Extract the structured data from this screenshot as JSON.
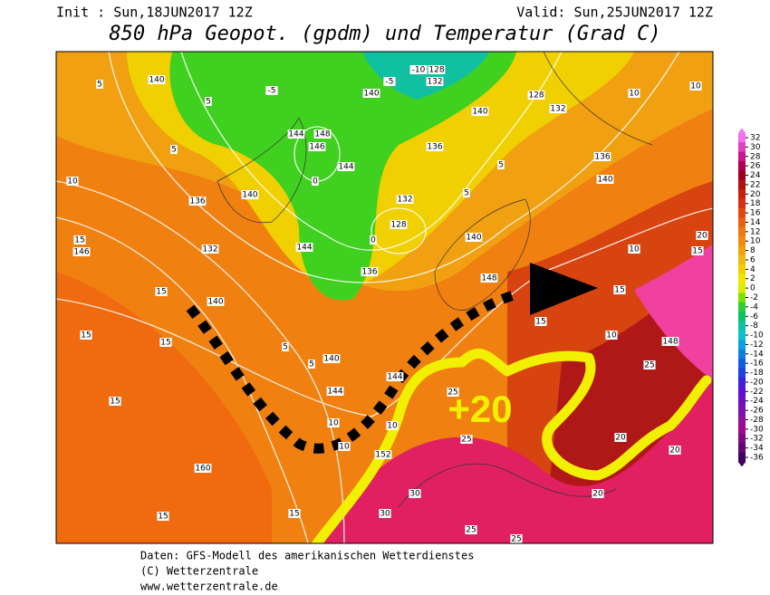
{
  "header": {
    "init": "Init : Sun,18JUN2017 12Z",
    "valid": "Valid: Sun,25JUN2017 12Z",
    "title": "850 hPa Geopot. (gpdm) und Temperatur (Grad C)"
  },
  "annotation": "+20",
  "map": {
    "labels": [
      "140",
      "5",
      "-5",
      "144",
      "148",
      "146",
      "144",
      "140",
      "140",
      "136",
      "132",
      "128",
      "136",
      "140",
      "148",
      "144",
      "140",
      "136",
      "132",
      "146",
      "140",
      "140",
      "144",
      "144",
      "152",
      "160",
      "10",
      "15",
      "15",
      "15",
      "15",
      "15",
      "15",
      "15",
      "10",
      "10",
      "10",
      "10",
      "10",
      "15",
      "15",
      "15",
      "20",
      "25",
      "25",
      "25",
      "30",
      "30",
      "25",
      "25",
      "20",
      "20",
      "20",
      "148",
      "136",
      "140",
      "132",
      "128",
      "-10",
      "128",
      "132",
      "-5",
      "5",
      "5",
      "10",
      "10",
      "5",
      "5",
      "0",
      "0",
      "5",
      "5"
    ]
  },
  "colorbar": {
    "ticks": [
      32,
      30,
      28,
      26,
      24,
      22,
      20,
      18,
      16,
      14,
      12,
      10,
      8,
      6,
      4,
      2,
      0,
      -2,
      -4,
      -6,
      -8,
      -10,
      -12,
      -14,
      -16,
      -18,
      -20,
      -22,
      -24,
      -26,
      -28,
      -30,
      -32,
      -34,
      -36
    ],
    "colors": [
      "#f070f0",
      "#e040c0",
      "#c81890",
      "#b00050",
      "#a00020",
      "#b01010",
      "#c82010",
      "#d83010",
      "#e04810",
      "#e86010",
      "#f07810",
      "#f08c10",
      "#f0a010",
      "#f0b810",
      "#f0d000",
      "#f0e800",
      "#d8f000",
      "#80e000",
      "#30d030",
      "#10c060",
      "#10c0a0",
      "#10c0d0",
      "#10a0e0",
      "#1080e0",
      "#1060e0",
      "#2040e0",
      "#4020e0",
      "#6010d0",
      "#7010c0",
      "#8010b0",
      "#9010a0",
      "#a00890",
      "#800880",
      "#600870",
      "#400060"
    ]
  },
  "footer": [
    "Daten: GFS-Modell des amerikanischen Wetterdienstes",
    "(C) Wetterzentrale",
    "www.wetterzentrale.de"
  ]
}
